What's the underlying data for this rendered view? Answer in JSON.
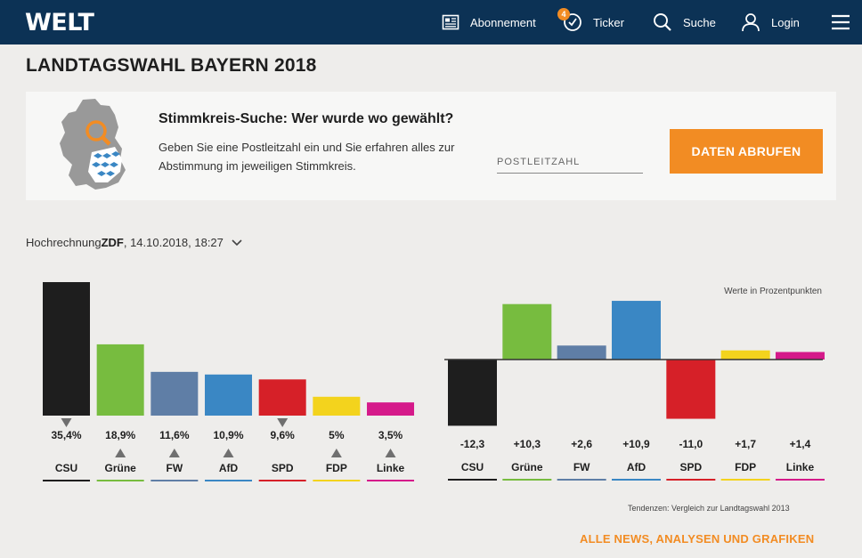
{
  "header": {
    "logo": "WELT",
    "nav": {
      "abonnement": "Abonnement",
      "ticker": "Ticker",
      "ticker_badge": "4",
      "suche": "Suche",
      "login": "Login"
    }
  },
  "page_title": "LANDTAGSWAHL BAYERN 2018",
  "stimmkreis": {
    "heading": "Stimmkreis-Suche: Wer wurde wo gewählt?",
    "text": "Geben Sie eine Postleitzahl ein und Sie erfahren alles zur Abstimmung im jeweiligen Stimmkreis.",
    "input_placeholder": "POSTLEITZAHL",
    "button": "DATEN ABRUFEN"
  },
  "projection": {
    "prefix": "Hochrechnung ",
    "source": "ZDF",
    "datetime": ", 14.10.2018, 18:27"
  },
  "chart_data": [
    {
      "type": "bar",
      "categories": [
        "CSU",
        "Grüne",
        "FW",
        "AfD",
        "SPD",
        "FDP",
        "Linke"
      ],
      "values": [
        35.4,
        18.9,
        11.6,
        10.9,
        9.6,
        5.0,
        3.5
      ],
      "value_labels": [
        "35,4%",
        "18,9%",
        "11,6%",
        "10,9%",
        "9,6%",
        "5%",
        "3,5%"
      ],
      "trend": [
        "down",
        "up",
        "up",
        "up",
        "down",
        "up",
        "up"
      ],
      "colors": [
        "#1e1e1e",
        "#77bc3f",
        "#5f7ea6",
        "#3a87c4",
        "#d62028",
        "#f3d31d",
        "#d51a8a"
      ],
      "ylim": [
        0,
        35.4
      ]
    },
    {
      "type": "bar",
      "categories": [
        "CSU",
        "Grüne",
        "FW",
        "AfD",
        "SPD",
        "FDP",
        "Linke"
      ],
      "values": [
        -12.3,
        10.3,
        2.6,
        10.9,
        -11.0,
        1.7,
        1.4
      ],
      "value_labels": [
        "-12,3",
        "+10,3",
        "+2,6",
        "+10,9",
        "-11,0",
        "+1,7",
        "+1,4"
      ],
      "colors": [
        "#1e1e1e",
        "#77bc3f",
        "#5f7ea6",
        "#3a87c4",
        "#d62028",
        "#f3d31d",
        "#d51a8a"
      ],
      "unit_note": "Werte in Prozentpunkten",
      "footnote": "Tendenzen: Vergleich zur Landtagswahl 2013",
      "ylim": [
        -12.3,
        10.9
      ]
    }
  ],
  "footer": {
    "all_news": "ALLE NEWS, ANALYSEN UND GRAFIKEN"
  }
}
